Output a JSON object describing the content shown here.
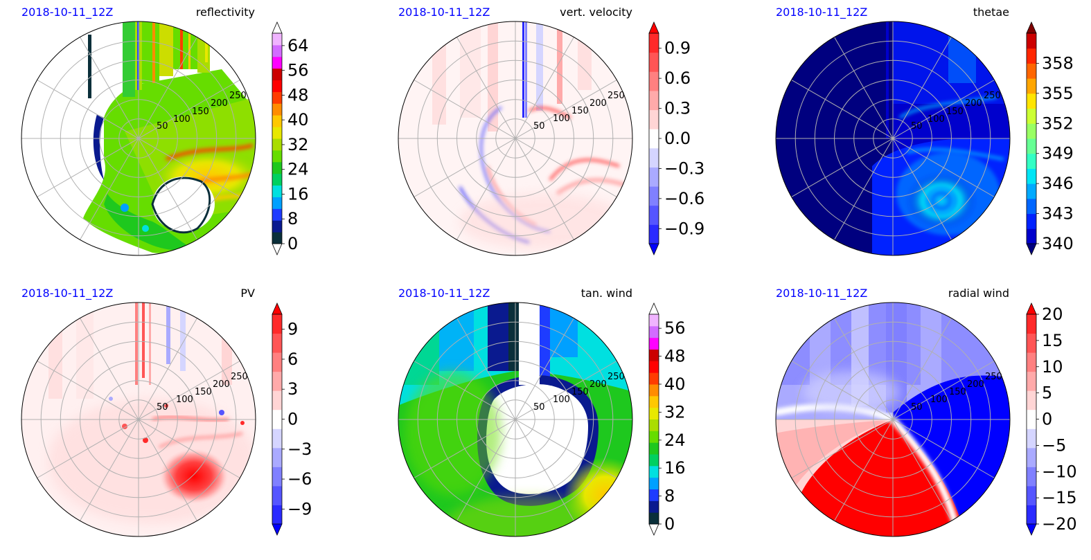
{
  "chart_data": [
    {
      "type": "heatmap",
      "projection": "polar",
      "field": "reflectivity",
      "timestamp": "2018-10-11_12Z",
      "title": "reflectivity",
      "radial_ticks": [
        50,
        100,
        150,
        200,
        250
      ],
      "colorbar": {
        "ticks": [
          "0",
          "8",
          "16",
          "24",
          "32",
          "40",
          "48",
          "56",
          "64"
        ],
        "range": [
          0,
          68
        ],
        "extend": "both"
      }
    },
    {
      "type": "heatmap",
      "projection": "polar",
      "field": "vert_velocity",
      "timestamp": "2018-10-11_12Z",
      "title": "vert. velocity",
      "radial_ticks": [
        50,
        100,
        150,
        200,
        250
      ],
      "colorbar": {
        "ticks": [
          "−0.9",
          "−0.6",
          "−0.3",
          "0.0",
          "0.3",
          "0.6",
          "0.9"
        ],
        "range": [
          -1.05,
          1.05
        ],
        "extend": "both"
      }
    },
    {
      "type": "heatmap",
      "projection": "polar",
      "field": "thetae",
      "timestamp": "2018-10-11_12Z",
      "title": "thetae",
      "radial_ticks": [
        50,
        100,
        150,
        200,
        250
      ],
      "colorbar": {
        "ticks": [
          "340",
          "343",
          "346",
          "349",
          "352",
          "355",
          "358"
        ],
        "range": [
          340,
          361
        ],
        "extend": "both"
      }
    },
    {
      "type": "heatmap",
      "projection": "polar",
      "field": "pv",
      "timestamp": "2018-10-11_12Z",
      "title": "PV",
      "radial_ticks": [
        50,
        100,
        150,
        200,
        250
      ],
      "colorbar": {
        "ticks": [
          "−9",
          "−6",
          "−3",
          "0",
          "3",
          "6",
          "9"
        ],
        "range": [
          -10.5,
          10.5
        ],
        "extend": "both"
      }
    },
    {
      "type": "heatmap",
      "projection": "polar",
      "field": "tan_wind",
      "timestamp": "2018-10-11_12Z",
      "title": "tan. wind",
      "radial_ticks": [
        50,
        100,
        150,
        200,
        250
      ],
      "colorbar": {
        "ticks": [
          "0",
          "8",
          "16",
          "24",
          "32",
          "40",
          "48",
          "56"
        ],
        "range": [
          0,
          60
        ],
        "extend": "both"
      }
    },
    {
      "type": "heatmap",
      "projection": "polar",
      "field": "radial_wind",
      "timestamp": "2018-10-11_12Z",
      "title": "radial wind",
      "radial_ticks": [
        50,
        100,
        150,
        200,
        250
      ],
      "colorbar": {
        "ticks": [
          "−20",
          "−15",
          "−10",
          "−5",
          "0",
          "5",
          "10",
          "15",
          "20"
        ],
        "range": [
          -20,
          20
        ],
        "extend": "both"
      }
    }
  ],
  "colormaps": {
    "refl": [
      "#ffffff",
      "#0a2f3a",
      "#0a1a8f",
      "#1e3cff",
      "#00a0ff",
      "#00e0e0",
      "#00d060",
      "#1ec81e",
      "#66dd00",
      "#aadd00",
      "#e8e800",
      "#ffc800",
      "#ff8c00",
      "#ff3c00",
      "#ff0000",
      "#cc0000",
      "#ff00ff",
      "#d26cff",
      "#f0b4ff",
      "#ffffff"
    ],
    "tan": [
      "#ffffff",
      "#0a2f3a",
      "#0a1a8f",
      "#1e3cff",
      "#00a0ff",
      "#00e0e0",
      "#00d060",
      "#1ec81e",
      "#66dd00",
      "#aadd00",
      "#e8e800",
      "#ffc800",
      "#ff8c00",
      "#ff3c00",
      "#ff0000",
      "#cc0000",
      "#ff00ff",
      "#d26cff",
      "#f0b4ff",
      "#ffffff"
    ],
    "bwr": [
      "#0000ff",
      "#2a2aff",
      "#5555ff",
      "#8080ff",
      "#aaaaff",
      "#d5d5ff",
      "#ffffff",
      "#ffd5d5",
      "#ffaaaa",
      "#ff8080",
      "#ff5555",
      "#ff2a2a",
      "#ff0000"
    ],
    "jet": [
      "#00007f",
      "#0000cc",
      "#0022ff",
      "#0066ff",
      "#00aaff",
      "#00e5f5",
      "#33ffc4",
      "#66ff94",
      "#99ff63",
      "#ccff33",
      "#ffe500",
      "#ffa600",
      "#ff6600",
      "#ff2600",
      "#cc0000",
      "#7f0000"
    ]
  }
}
